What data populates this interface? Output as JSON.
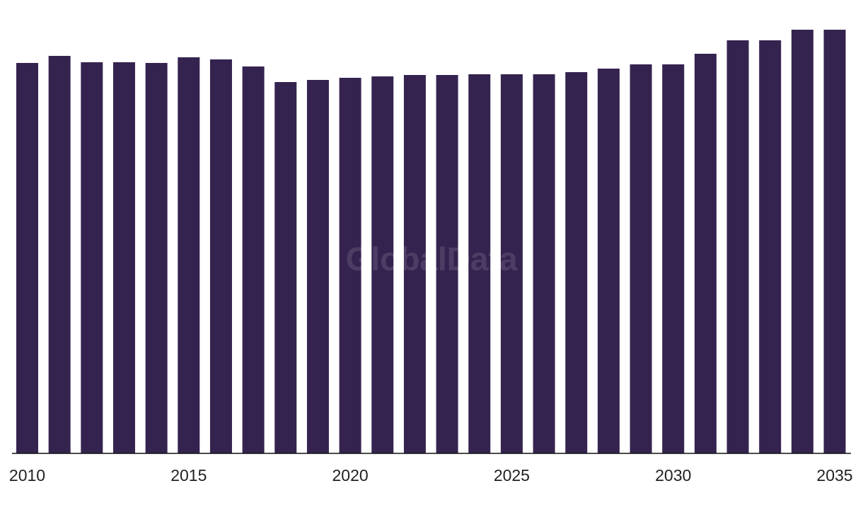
{
  "chart_data": {
    "type": "bar",
    "watermark": "GlobalData",
    "x": [
      2010,
      2011,
      2012,
      2013,
      2014,
      2015,
      2016,
      2017,
      2018,
      2019,
      2020,
      2021,
      2022,
      2023,
      2024,
      2025,
      2026,
      2027,
      2028,
      2029,
      2030,
      2031,
      2032,
      2033,
      2034,
      2035
    ],
    "values": [
      552,
      562,
      553,
      553,
      552,
      560,
      557,
      547,
      525,
      528,
      531,
      533,
      535,
      535,
      536,
      536,
      536,
      539,
      544,
      550,
      550,
      565,
      584,
      584,
      599,
      599
    ],
    "color": "#35234f",
    "xlim": [
      2010,
      2035
    ],
    "xticks": [
      2010,
      2015,
      2020,
      2025,
      2030,
      2035
    ],
    "ylim": [
      0,
      600
    ]
  }
}
